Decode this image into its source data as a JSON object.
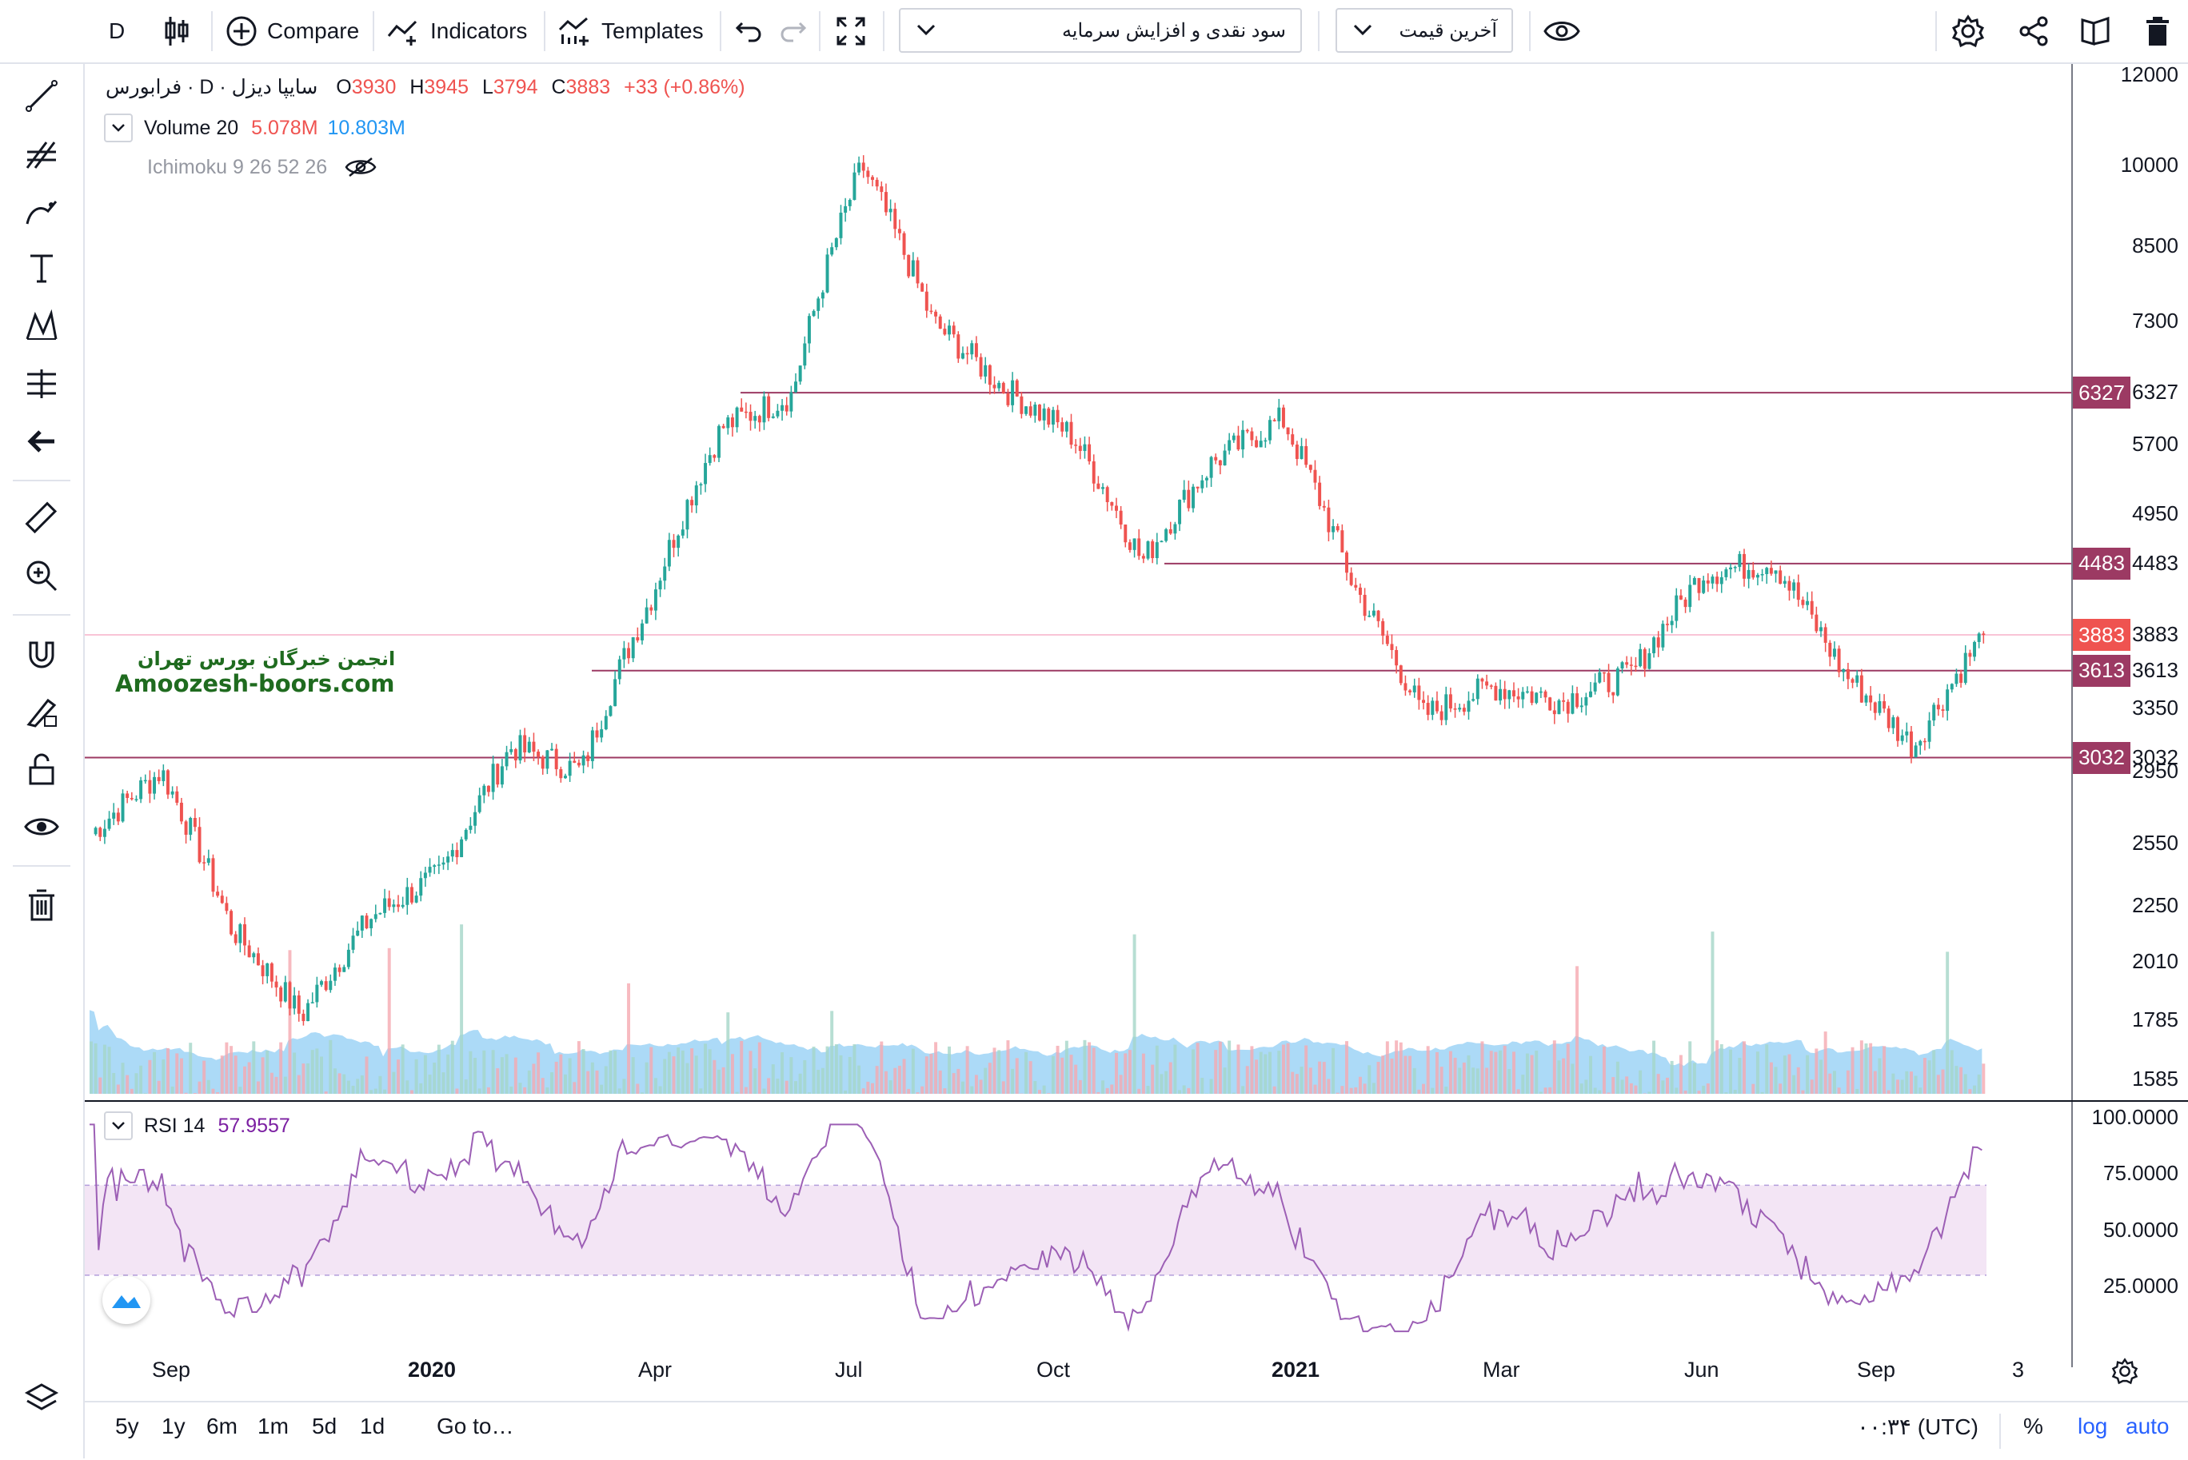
{
  "toolbar": {
    "interval": "D",
    "compare_label": "Compare",
    "indicators_label": "Indicators",
    "templates_label": "Templates",
    "dividend_dropdown": "سود نقدی و افزایش سرمایه",
    "price_dropdown": "آخرین قیمت"
  },
  "legend": {
    "symbol": "سایپا دیزل · D · فرابورس",
    "open_key": "O",
    "open_val": "3930",
    "high_key": "H",
    "high_val": "3945",
    "low_key": "L",
    "low_val": "3794",
    "close_key": "C",
    "close_val": "3883",
    "change": "+33 (+0.86%)",
    "volume_label": "Volume 20",
    "volume_val1": "5.078M",
    "volume_val2": "10.803M",
    "ichimoku_label": "Ichimoku 9 26 52 26",
    "rsi_label": "RSI 14",
    "rsi_val": "57.9557"
  },
  "watermark": {
    "line1": "انجمن خبرگان بورس تهران",
    "line2": "Amoozesh-boors.com"
  },
  "price_scale": {
    "ticks": [
      "12000",
      "10000",
      "8500",
      "7300",
      "6327",
      "5700",
      "4950",
      "4483",
      "3883",
      "3613",
      "3350",
      "3032",
      "2950",
      "2550",
      "2250",
      "2010",
      "1785",
      "1585"
    ]
  },
  "price_tags": [
    {
      "label": "6327",
      "color": "#9c3a63"
    },
    {
      "label": "4483",
      "color": "#9c3a63"
    },
    {
      "label": "3883",
      "color": "#ef5350"
    },
    {
      "label": "3613",
      "color": "#9c3a63"
    },
    {
      "label": "3032",
      "color": "#9c3a63"
    }
  ],
  "rsi_scale": {
    "ticks": [
      "100.0000",
      "75.0000",
      "50.0000",
      "25.0000"
    ]
  },
  "time_axis": {
    "labels": [
      "Sep",
      "2020",
      "Apr",
      "Jul",
      "Oct",
      "2021",
      "Mar",
      "Jun",
      "Sep",
      "3"
    ]
  },
  "bottom_bar": {
    "ranges": [
      "5y",
      "1y",
      "6m",
      "1m",
      "5d",
      "1d"
    ],
    "goto_label": "Go to…",
    "timezone": "۰۰:۳۴ (UTC)",
    "percent": "%",
    "log": "log",
    "auto": "auto"
  },
  "colors": {
    "up": "#26a69a",
    "down": "#ef5350",
    "level_line": "#9c3a63",
    "rsi_line": "#9c5fb5",
    "rsi_band": "#f3e5f5",
    "volume_ma": "#7ec4f3",
    "accent": "#2962ff"
  },
  "chart_data": [
    {
      "type": "candlestick",
      "title": "سایپا دیزل · D · فرابورس",
      "y_scale": "log",
      "ylim": [
        1585,
        12000
      ],
      "x_labels": [
        "Sep",
        "2020",
        "Apr",
        "Jul",
        "Oct",
        "2021",
        "Mar",
        "Jun",
        "Sep",
        "3"
      ],
      "last_ohlc": {
        "open": 3930,
        "high": 3945,
        "low": 3794,
        "close": 3883
      },
      "horizontal_levels": [
        6327,
        4483,
        3613,
        3032
      ],
      "current_price": 3883,
      "approx_close_path": [
        {
          "t": "2019-08",
          "close": 2600
        },
        {
          "t": "2019-09",
          "close": 2950
        },
        {
          "t": "2019-10",
          "close": 2150
        },
        {
          "t": "2019-11",
          "close": 1800
        },
        {
          "t": "2019-12",
          "close": 2200
        },
        {
          "t": "2020-01",
          "close": 2400
        },
        {
          "t": "2020-02",
          "close": 3100
        },
        {
          "t": "2020-03",
          "close": 2950
        },
        {
          "t": "2020-04",
          "close": 4200
        },
        {
          "t": "2020-05",
          "close": 5900
        },
        {
          "t": "2020-06",
          "close": 6300
        },
        {
          "t": "2020-07",
          "close": 10000
        },
        {
          "t": "2020-08",
          "close": 7300
        },
        {
          "t": "2020-09",
          "close": 6400
        },
        {
          "t": "2020-10",
          "close": 5800
        },
        {
          "t": "2020-11",
          "close": 4500
        },
        {
          "t": "2020-12",
          "close": 5500
        },
        {
          "t": "2021-01",
          "close": 6000
        },
        {
          "t": "2021-02",
          "close": 4300
        },
        {
          "t": "2021-03",
          "close": 3300
        },
        {
          "t": "2021-04",
          "close": 3500
        },
        {
          "t": "2021-05",
          "close": 3400
        },
        {
          "t": "2021-06",
          "close": 3600
        },
        {
          "t": "2021-07",
          "close": 4400
        },
        {
          "t": "2021-08",
          "close": 4500
        },
        {
          "t": "2021-09",
          "close": 3600
        },
        {
          "t": "2021-10",
          "close": 3100
        },
        {
          "t": "2021-11",
          "close": 3883
        }
      ]
    },
    {
      "type": "line",
      "title": "RSI 14",
      "ylim": [
        0,
        100
      ],
      "bands": [
        30,
        70
      ],
      "last_value": 57.9557
    }
  ]
}
